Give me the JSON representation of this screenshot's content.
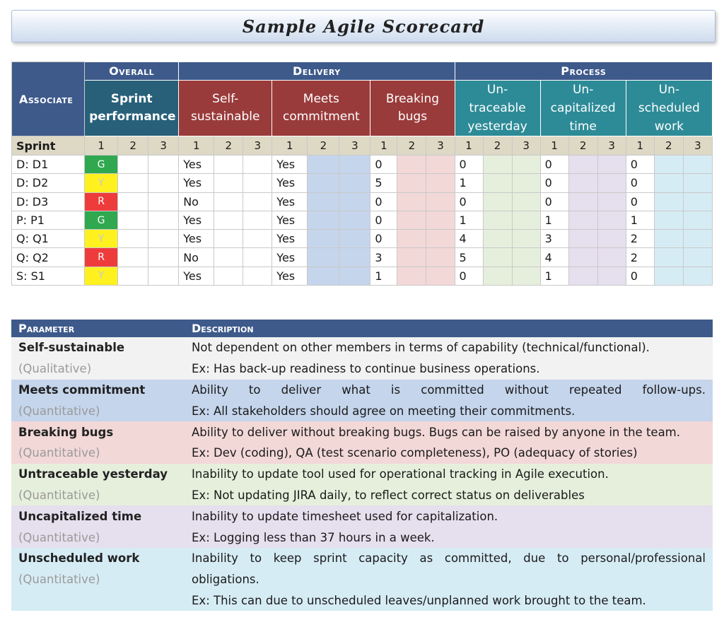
{
  "title": "Sample Agile Scorecard",
  "groups": {
    "overall": "Overall",
    "delivery": "Delivery",
    "process": "Process"
  },
  "headers": {
    "associate": "Associate",
    "sprint_performance": "Sprint performance",
    "self_sustainable": "Self-sustainable",
    "meets_commitment": "Meets commitment",
    "breaking_bugs": "Breaking bugs",
    "untraceable_yesterday": "Un-traceable yesterday",
    "uncapitalized_time": "Un-capitalized time",
    "unscheduled_work": "Un-scheduled work"
  },
  "sprint_label": "Sprint",
  "sprints": [
    "1",
    "2",
    "3"
  ],
  "rows": [
    {
      "associate": "D: D1",
      "status": "G",
      "self": "Yes",
      "meets": "Yes",
      "bugs": "0",
      "untrace": "0",
      "uncap": "0",
      "unsched": "0"
    },
    {
      "associate": "D: D2",
      "status": "Y",
      "self": "Yes",
      "meets": "Yes",
      "bugs": "5",
      "untrace": "1",
      "uncap": "0",
      "unsched": "0"
    },
    {
      "associate": "D: D3",
      "status": "R",
      "self": "No",
      "meets": "Yes",
      "bugs": "0",
      "untrace": "0",
      "uncap": "0",
      "unsched": "0"
    },
    {
      "associate": "P: P1",
      "status": "G",
      "self": "Yes",
      "meets": "Yes",
      "bugs": "0",
      "untrace": "1",
      "uncap": "1",
      "unsched": "1"
    },
    {
      "associate": "Q: Q1",
      "status": "Y",
      "self": "Yes",
      "meets": "Yes",
      "bugs": "0",
      "untrace": "4",
      "uncap": "3",
      "unsched": "2"
    },
    {
      "associate": "Q: Q2",
      "status": "R",
      "self": "No",
      "meets": "Yes",
      "bugs": "3",
      "untrace": "5",
      "uncap": "4",
      "unsched": "2"
    },
    {
      "associate": "S: S1",
      "status": "Y",
      "self": "Yes",
      "meets": "Yes",
      "bugs": "1",
      "untrace": "0",
      "uncap": "1",
      "unsched": "0"
    }
  ],
  "status_colors": {
    "G": "#2fa84f",
    "Y": "#fff11f",
    "R": "#ee3b3b"
  },
  "params": {
    "header_parameter": "Parameter",
    "header_description": "Description",
    "items": [
      {
        "name": "Self-sustainable",
        "kind": "(Qualitative)",
        "lines": [
          "Not dependent on other members in terms of capability (technical/functional).",
          "Ex: Has back-up readiness to continue business operations."
        ]
      },
      {
        "name": "Meets commitment",
        "kind": "(Quantitative)",
        "lines": [
          "Ability to deliver what is committed without repeated follow-ups.",
          "Ex: All stakeholders should agree on meeting their commitments."
        ]
      },
      {
        "name": "Breaking bugs",
        "kind": "(Quantitative)",
        "lines": [
          "Ability to deliver without breaking bugs. Bugs can be raised by anyone in the team.",
          "Ex: Dev (coding), QA (test scenario completeness), PO (adequacy of stories)"
        ]
      },
      {
        "name": "Untraceable yesterday",
        "kind": "(Quantitative)",
        "lines": [
          "Inability to update tool used for operational tracking in Agile execution.",
          "Ex: Not updating JIRA daily, to reflect correct status on deliverables"
        ]
      },
      {
        "name": "Uncapitalized time",
        "kind": "(Quantitative)",
        "lines": [
          "Inability to update timesheet used for capitalization.",
          "Ex: Logging less than 37 hours in a week."
        ]
      },
      {
        "name": "Unscheduled work",
        "kind": "(Quantitative)",
        "lines": [
          "Inability to keep sprint capacity as committed, due to personal/professional",
          "obligations.",
          "Ex: This can due to unscheduled leaves/unplanned work brought to the team."
        ]
      }
    ]
  }
}
